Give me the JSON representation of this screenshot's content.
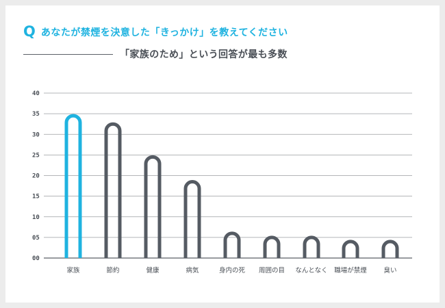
{
  "header": {
    "q_mark": "Q",
    "question": "あなたが禁煙を決意した「きっかけ」を教えてください",
    "subtitle": "「家族のため」という回答が最も多数"
  },
  "colors": {
    "accent": "#1fb3e0",
    "bar": "#555b63",
    "grid": "#9a9da1",
    "axis": "#5a5f66"
  },
  "chart_data": {
    "type": "bar",
    "categories": [
      "家族",
      "節約",
      "健康",
      "病気",
      "身内の死",
      "周囲の目",
      "なんとなく",
      "職場が禁煙",
      "臭い"
    ],
    "values": [
      34.5,
      32.5,
      24.5,
      18.5,
      6,
      5,
      5,
      4,
      4
    ],
    "highlight_index": 0,
    "ylim": [
      0,
      40
    ],
    "y_ticks": [
      "00",
      "05",
      "10",
      "15",
      "20",
      "25",
      "30",
      "35",
      "40"
    ],
    "y_tick_values": [
      0,
      5,
      10,
      15,
      20,
      25,
      30,
      35,
      40
    ],
    "grid": true,
    "legend": "none"
  }
}
